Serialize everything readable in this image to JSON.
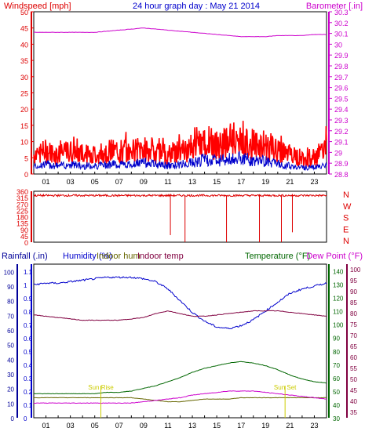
{
  "title": "24 hour graph day : May 21 2014",
  "colors": {
    "wind": "#dd0000",
    "gust": "#ff0000",
    "avg": "#0000cc",
    "baro": "#cc00cc",
    "rain": "#000099",
    "humidity": "#0000cc",
    "indoor_hum": "#666600",
    "indoor_temp": "#800040",
    "temperature": "#006600",
    "dew": "#cc00cc",
    "sun": "#cccc00",
    "axis": "#000000",
    "grid": "#cccccc"
  },
  "x_ticks": [
    "01",
    "03",
    "05",
    "07",
    "09",
    "11",
    "13",
    "15",
    "17",
    "19",
    "21",
    "23"
  ],
  "chart_data": [
    {
      "type": "line",
      "title": "24 hour graph day : May 21 2014",
      "ylabel": "Windspeed [mph]",
      "y2label": "Barometer [.in]",
      "ylim": [
        0,
        50
      ],
      "y_ticks": [
        0,
        5,
        10,
        15,
        20,
        25,
        30,
        35,
        40,
        45,
        50
      ],
      "y2lim": [
        28.8,
        30.3
      ],
      "y2_ticks": [
        "28.8",
        "28.9",
        "29",
        "29.1",
        "29.2",
        "29.3",
        "29.4",
        "29.5",
        "29.6",
        "29.7",
        "29.8",
        "29.9",
        "30",
        "30.1",
        "30.2",
        "30.3"
      ],
      "x_hours": [
        0,
        1,
        2,
        3,
        4,
        5,
        6,
        7,
        8,
        9,
        10,
        11,
        12,
        13,
        14,
        15,
        16,
        17,
        18,
        19,
        20,
        21,
        22,
        23,
        24
      ],
      "series": [
        {
          "key": "gust",
          "values": [
            6,
            7,
            6,
            7,
            6,
            6,
            7,
            7,
            7,
            8,
            7,
            6,
            7,
            8,
            10,
            9,
            10,
            11,
            9,
            9,
            7,
            6,
            5,
            5,
            8
          ]
        },
        {
          "key": "avg",
          "values": [
            2.5,
            3,
            2.5,
            3,
            2.5,
            2.5,
            3,
            3,
            3,
            3.5,
            3,
            2.5,
            3,
            3.5,
            4.5,
            4,
            4.5,
            5,
            4,
            4,
            3,
            2.5,
            2,
            2,
            3
          ]
        },
        {
          "key": "baro",
          "values": [
            30.11,
            30.11,
            30.11,
            30.11,
            30.11,
            30.11,
            30.12,
            30.13,
            30.14,
            30.15,
            30.14,
            30.13,
            30.12,
            30.11,
            30.1,
            30.09,
            30.08,
            30.07,
            30.07,
            30.07,
            30.08,
            30.08,
            30.08,
            30.09,
            30.09
          ]
        }
      ]
    },
    {
      "type": "line",
      "ylim": [
        0,
        360
      ],
      "y_ticks": [
        0,
        45,
        90,
        135,
        180,
        225,
        270,
        315,
        360
      ],
      "compass": [
        "N",
        "W",
        "S",
        "E",
        "N"
      ],
      "values": [
        330,
        330,
        330,
        330,
        330,
        330,
        330,
        330,
        330,
        330,
        330,
        330,
        330,
        330,
        330,
        330,
        330,
        330,
        330,
        330,
        330,
        330,
        330,
        330,
        330
      ],
      "drops": [
        [
          11.2,
          50
        ],
        [
          12.4,
          0
        ],
        [
          15.8,
          0
        ],
        [
          18.5,
          0
        ],
        [
          20.3,
          0
        ],
        [
          21.2,
          70
        ]
      ]
    },
    {
      "type": "line",
      "label_rain": "Rainfall (.in)",
      "label_humidity": "Humidity (%)",
      "label_indoor_hum": "Indoor hum",
      "label_indoor_temp": "Indoor temp",
      "label_temperature": "Temperature (°F)",
      "label_dew": "Dew Point (°F)",
      "humidity_ticks": [
        0,
        10,
        20,
        30,
        40,
        50,
        60,
        70,
        80,
        90,
        100
      ],
      "rain_ticks": [
        "0",
        "0.1",
        "0.2",
        "0.3",
        "0.4",
        "0.5",
        "0.6",
        "0.7",
        "0.8",
        "0.9",
        "1",
        "1.1"
      ],
      "temp_ticks": [
        30,
        40,
        50,
        60,
        70,
        80,
        90,
        100,
        110,
        120,
        130,
        140
      ],
      "dew_ticks": [
        35,
        40,
        45,
        50,
        55,
        60,
        65,
        70,
        75,
        80,
        85,
        90,
        95,
        100
      ],
      "templim": [
        30,
        145
      ],
      "humlim": [
        0,
        105
      ],
      "x_hours": [
        0,
        1,
        2,
        3,
        4,
        5,
        6,
        7,
        8,
        9,
        10,
        11,
        12,
        13,
        14,
        15,
        16,
        17,
        18,
        19,
        20,
        21,
        22,
        23,
        24
      ],
      "series": [
        {
          "key": "humidity",
          "values": [
            91,
            92,
            92,
            93,
            94,
            95,
            96,
            96,
            96,
            95,
            93,
            88,
            80,
            72,
            66,
            62,
            61,
            63,
            67,
            73,
            79,
            85,
            88,
            90,
            92
          ]
        },
        {
          "key": "indoor_hum",
          "values": [
            45,
            45,
            45,
            45,
            45,
            45,
            45,
            45,
            45,
            44,
            43,
            42,
            42,
            43,
            44,
            44,
            44,
            45,
            45,
            45,
            45,
            45,
            45,
            45,
            45
          ]
        },
        {
          "key": "indoor_temp",
          "values": [
            107,
            106,
            105,
            104,
            103,
            103,
            103,
            103,
            104,
            105,
            108,
            110,
            108,
            106,
            106,
            107,
            108,
            109,
            110,
            110,
            110,
            109,
            108,
            107,
            106
          ]
        },
        {
          "key": "temperature",
          "values": [
            48,
            48,
            48,
            48,
            48,
            48,
            49,
            49,
            50,
            52,
            54,
            57,
            60,
            64,
            67,
            69,
            71,
            72,
            71,
            69,
            66,
            62,
            59,
            57,
            56
          ]
        },
        {
          "key": "dew",
          "values": [
            41,
            41,
            41,
            41,
            41,
            41,
            41,
            41,
            41,
            42,
            43,
            44,
            45,
            47,
            48,
            49,
            50,
            50,
            50,
            49,
            48,
            47,
            46,
            45,
            44
          ]
        }
      ],
      "sunrise_label": "Sun Rise",
      "sunset_label": "Sun Set",
      "sunrise_hour": 5.5,
      "sunset_hour": 20.6
    }
  ]
}
